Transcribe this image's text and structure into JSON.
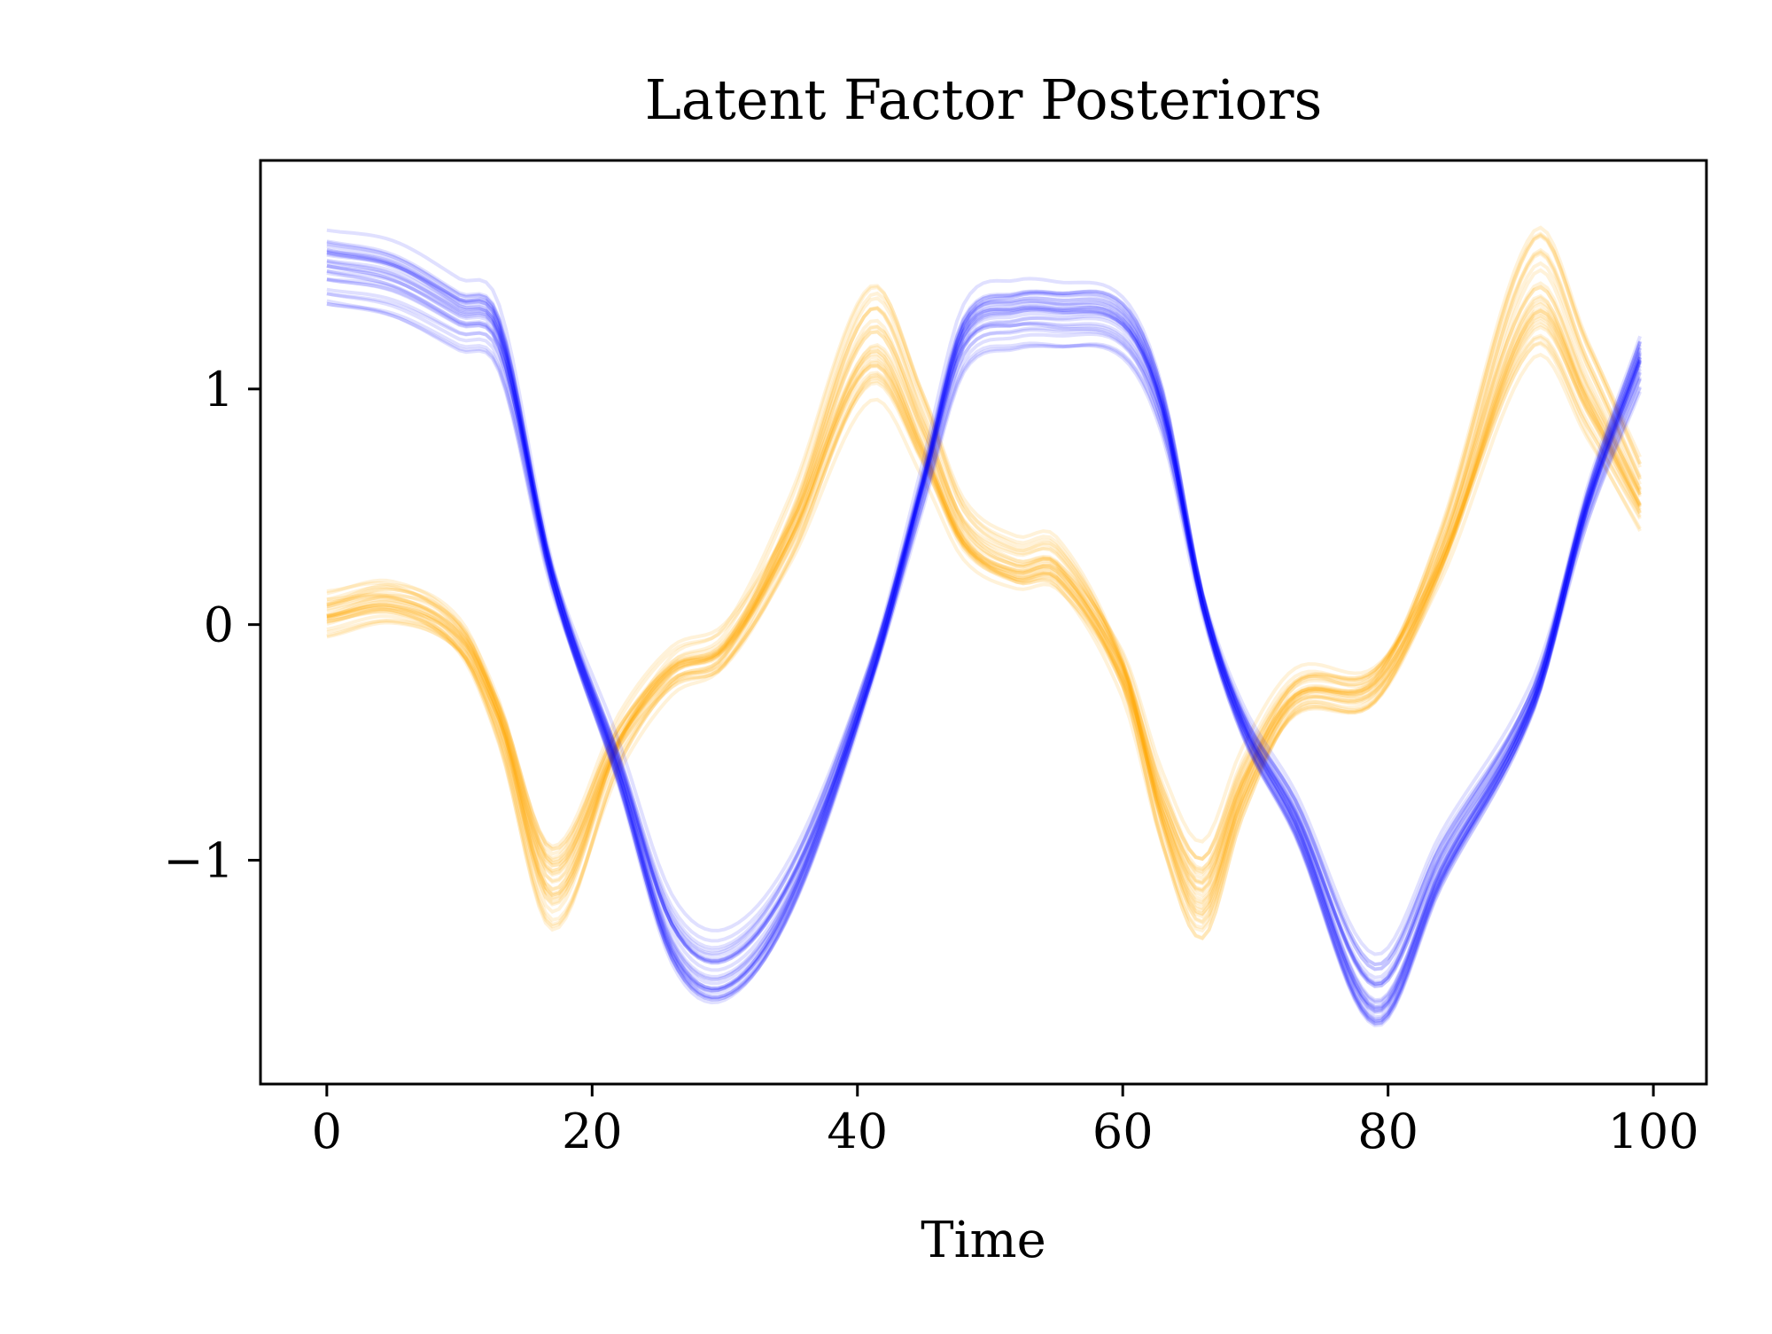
{
  "chart_data": {
    "type": "line",
    "title": "Latent Factor Posteriors",
    "xlabel": "Time",
    "ylabel": "",
    "xlim": [
      -5,
      104
    ],
    "ylim": [
      -1.95,
      1.97
    ],
    "x_ticks": [
      0,
      20,
      40,
      60,
      80,
      100
    ],
    "x_tick_labels": [
      "0",
      "20",
      "40",
      "60",
      "80",
      "100"
    ],
    "y_ticks": [
      -1,
      0,
      1
    ],
    "y_tick_labels": [
      "−1",
      "0",
      "1"
    ],
    "grid": false,
    "legend": "none",
    "x": [
      0,
      5,
      10,
      13,
      17,
      22,
      26,
      30,
      35,
      41,
      45,
      48,
      52,
      55,
      60,
      63,
      66,
      69,
      73,
      79,
      84,
      91,
      95,
      99
    ],
    "samples_per_series": 30,
    "series": [
      {
        "color": "#ffa500",
        "opacity": 0.15,
        "sample_spread": 0.15,
        "values": [
          0.05,
          0.1,
          -0.05,
          -0.4,
          -1.1,
          -0.5,
          -0.2,
          -0.1,
          0.4,
          1.2,
          0.8,
          0.4,
          0.25,
          0.25,
          -0.2,
          -0.8,
          -1.15,
          -0.7,
          -0.3,
          -0.25,
          0.3,
          1.4,
          1.0,
          0.55
        ]
      },
      {
        "color": "#0000ff",
        "opacity": 0.12,
        "sample_spread": 0.09,
        "values": [
          1.5,
          1.45,
          1.3,
          1.2,
          0.2,
          -0.6,
          -1.3,
          -1.45,
          -1.1,
          -0.2,
          0.6,
          1.2,
          1.3,
          1.3,
          1.25,
          0.9,
          0.1,
          -0.4,
          -0.8,
          -1.55,
          -1.0,
          -0.3,
          0.5,
          1.1
        ]
      }
    ]
  }
}
